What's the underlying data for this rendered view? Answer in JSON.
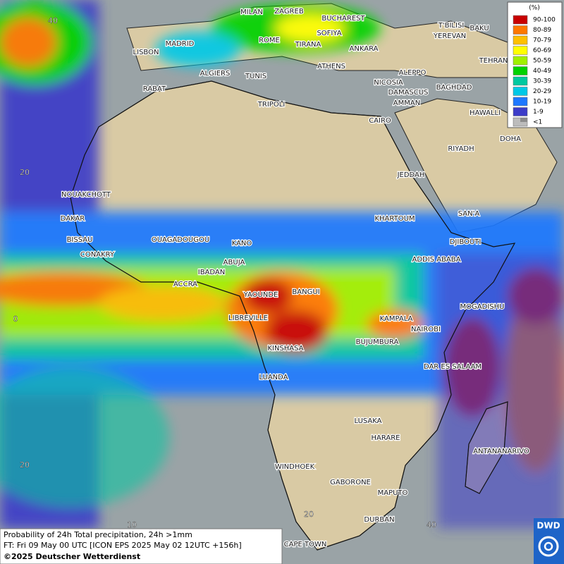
{
  "cities": [
    "MILAN",
    "ZAGREB",
    "BUCHAREST",
    "T'BILISI",
    "BAKU",
    "MADRID",
    "ROME",
    "SOFIYA",
    "YEREVAN",
    "LISBON",
    "TIRANA",
    "ANKARA",
    "TEHRAN",
    "ALGIERS",
    "TUNIS",
    "ATHENS",
    "ALEPPO",
    "RABAT",
    "NICOSIA",
    "DAMASCUS",
    "BAGHDAD",
    "AMMAN",
    "TRIPOLI",
    "HAWALLI",
    "CAIRO",
    "DOHA",
    "RIYADH",
    "JEDDAH",
    "NOUAKCHOTT",
    "SAN'A",
    "DAKAR",
    "KHARTOUM",
    "BISSAU",
    "OUAGADOUGOU",
    "KANO",
    "DJIBOUTI",
    "CONAKRY",
    "ABUJA",
    "ADDIS ABABA",
    "IBADAN",
    "ACCRA",
    "YAOUNDE",
    "BANGUI",
    "MOGADISHU",
    "LIBREVILLE",
    "KAMPALA",
    "NAIROBI",
    "BUJUMBURA",
    "KINSHASA",
    "DAR ES SALAAM",
    "LUANDA",
    "LUSAKA",
    "HARARE",
    "ANTANANARIVO",
    "WINDHOEK",
    "GABORONE",
    "MAPUTO",
    "DURBAN",
    "CAPE TOWN"
  ],
  "grid_labels": [
    "40",
    "20",
    "0",
    "20",
    "10",
    "20",
    "40"
  ],
  "legend": {
    "unit": "(%)",
    "items": [
      {
        "label": "90-100",
        "color": "#c80000"
      },
      {
        "label": "80-89",
        "color": "#ff7800"
      },
      {
        "label": "70-79",
        "color": "#ffc000"
      },
      {
        "label": "60-69",
        "color": "#ffff00"
      },
      {
        "label": "50-59",
        "color": "#a0f000"
      },
      {
        "label": "40-49",
        "color": "#00d200"
      },
      {
        "label": "30-39",
        "color": "#00c8a0"
      },
      {
        "label": "20-29",
        "color": "#00c8e6"
      },
      {
        "label": "10-19",
        "color": "#1e78ff"
      },
      {
        "label": "1-9",
        "color": "#3c3cc8"
      },
      {
        "label": "<1",
        "color": "#bcbcbc"
      }
    ]
  },
  "footer": {
    "line1": "Probability of 24h Total precipitation, 24h >1mm",
    "line2": "FT: Fri 09 May 00 UTC [ICON EPS 2025 May 02 12UTC +156h]",
    "line3": "©2025 Deutscher Wetterdienst"
  },
  "logo": "DWD"
}
